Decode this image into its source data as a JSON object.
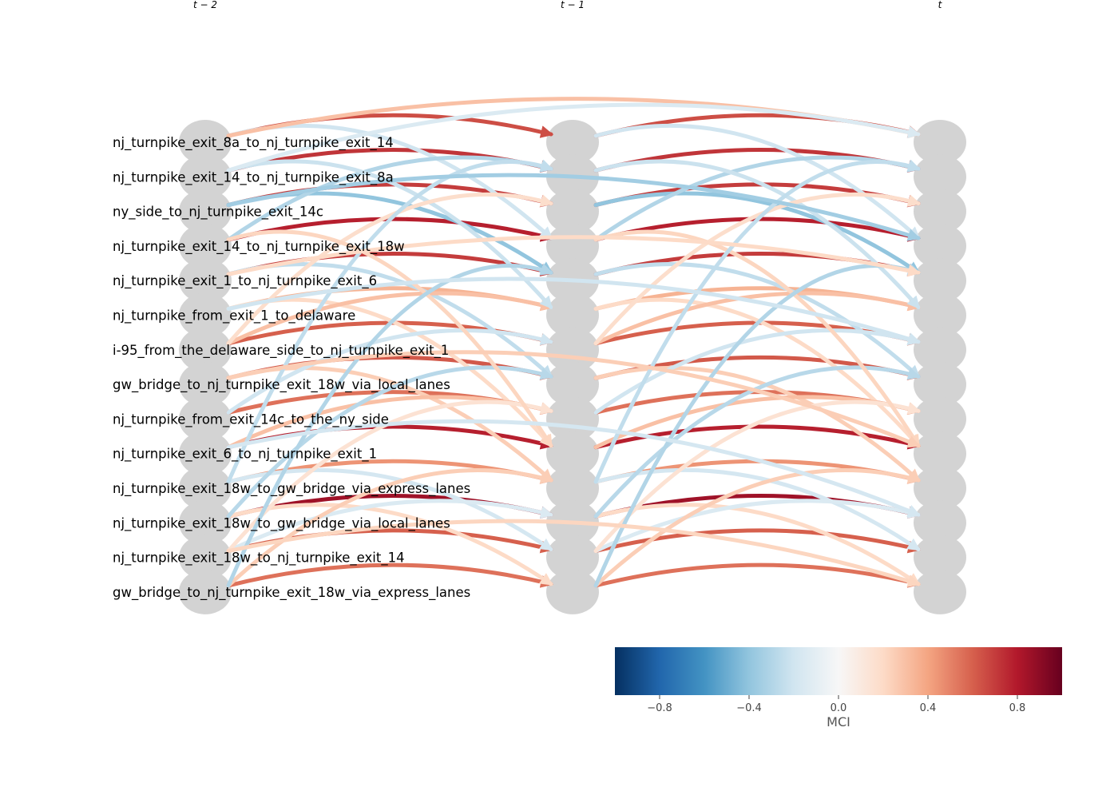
{
  "time_labels": [
    "t − 2",
    "t − 1",
    "t"
  ],
  "variables": [
    "nj_turnpike_exit_8a_to_nj_turnpike_exit_14",
    "nj_turnpike_exit_14_to_nj_turnpike_exit_8a",
    "ny_side_to_nj_turnpike_exit_14c",
    "nj_turnpike_exit_14_to_nj_turnpike_exit_18w",
    "nj_turnpike_exit_1_to_nj_turnpike_exit_6",
    "nj_turnpike_from_exit_1_to_delaware",
    "i-95_from_the_delaware_side_to_nj_turnpike_exit_1",
    "gw_bridge_to_nj_turnpike_exit_18w_via_local_lanes",
    "nj_turnpike_from_exit_14c_to_the_ny_side",
    "nj_turnpike_exit_6_to_nj_turnpike_exit_1",
    "nj_turnpike_exit_18w_to_gw_bridge_via_express_lanes",
    "nj_turnpike_exit_18w_to_gw_bridge_via_local_lanes",
    "nj_turnpike_exit_18w_to_nj_turnpike_exit_14",
    "gw_bridge_to_nj_turnpike_exit_18w_via_express_lanes"
  ],
  "colors": {
    "node": "#d3d3d3",
    "colormap": "RdBu_r",
    "colormap_stops": [
      "#053061",
      "#2166ac",
      "#4393c3",
      "#92c5de",
      "#d1e5f0",
      "#f7f7f7",
      "#fddbc7",
      "#f4a582",
      "#d6604d",
      "#b2182b",
      "#67001f"
    ]
  },
  "colorbar": {
    "title": "MCI",
    "min": -1.0,
    "max": 1.0,
    "ticks": [
      "−0.8",
      "−0.4",
      "0.0",
      "0.4",
      "0.8"
    ],
    "tick_values": [
      -0.8,
      -0.4,
      0.0,
      0.4,
      0.8
    ]
  },
  "links": [
    {
      "from": 0,
      "to": 0,
      "lag": 1,
      "mci": 0.65
    },
    {
      "from": 1,
      "to": 1,
      "lag": 1,
      "mci": 0.72
    },
    {
      "from": 2,
      "to": 2,
      "lag": 1,
      "mci": 0.7
    },
    {
      "from": 3,
      "to": 3,
      "lag": 1,
      "mci": 0.78
    },
    {
      "from": 4,
      "to": 4,
      "lag": 1,
      "mci": 0.7
    },
    {
      "from": 5,
      "to": 5,
      "lag": 1,
      "mci": 0.35
    },
    {
      "from": 6,
      "to": 6,
      "lag": 1,
      "mci": 0.6
    },
    {
      "from": 7,
      "to": 7,
      "lag": 1,
      "mci": 0.62
    },
    {
      "from": 8,
      "to": 8,
      "lag": 1,
      "mci": 0.55
    },
    {
      "from": 9,
      "to": 9,
      "lag": 1,
      "mci": 0.78
    },
    {
      "from": 10,
      "to": 10,
      "lag": 1,
      "mci": 0.45
    },
    {
      "from": 11,
      "to": 11,
      "lag": 1,
      "mci": 0.85
    },
    {
      "from": 12,
      "to": 12,
      "lag": 1,
      "mci": 0.6
    },
    {
      "from": 13,
      "to": 13,
      "lag": 1,
      "mci": 0.55
    },
    {
      "from": 0,
      "to": 3,
      "lag": 1,
      "mci": -0.2
    },
    {
      "from": 2,
      "to": 4,
      "lag": 1,
      "mci": -0.4
    },
    {
      "from": 3,
      "to": 1,
      "lag": 1,
      "mci": -0.3
    },
    {
      "from": 4,
      "to": 7,
      "lag": 1,
      "mci": -0.25
    },
    {
      "from": 5,
      "to": 9,
      "lag": 1,
      "mci": 0.2
    },
    {
      "from": 6,
      "to": 5,
      "lag": 1,
      "mci": 0.3
    },
    {
      "from": 7,
      "to": 10,
      "lag": 1,
      "mci": 0.25
    },
    {
      "from": 8,
      "to": 6,
      "lag": 1,
      "mci": -0.2
    },
    {
      "from": 9,
      "to": 8,
      "lag": 1,
      "mci": 0.3
    },
    {
      "from": 10,
      "to": 12,
      "lag": 1,
      "mci": -0.18
    },
    {
      "from": 11,
      "to": 13,
      "lag": 1,
      "mci": 0.2
    },
    {
      "from": 12,
      "to": 11,
      "lag": 1,
      "mci": -0.15
    },
    {
      "from": 13,
      "to": 10,
      "lag": 1,
      "mci": 0.25
    },
    {
      "from": 1,
      "to": 5,
      "lag": 1,
      "mci": -0.22
    },
    {
      "from": 6,
      "to": 2,
      "lag": 1,
      "mci": 0.18
    },
    {
      "from": 11,
      "to": 7,
      "lag": 1,
      "mci": -0.28
    },
    {
      "from": 12,
      "to": 8,
      "lag": 1,
      "mci": 0.15
    },
    {
      "from": 3,
      "to": 9,
      "lag": 1,
      "mci": 0.22
    },
    {
      "from": 10,
      "to": 1,
      "lag": 1,
      "mci": -0.25
    },
    {
      "from": 13,
      "to": 4,
      "lag": 1,
      "mci": -0.3
    },
    {
      "from": 0,
      "to": 0,
      "lag": 2,
      "mci": 0.3
    },
    {
      "from": 1,
      "to": 0,
      "lag": 2,
      "mci": -0.15
    },
    {
      "from": 2,
      "to": 3,
      "lag": 2,
      "mci": -0.35
    },
    {
      "from": 4,
      "to": 4,
      "lag": 2,
      "mci": 0.2
    },
    {
      "from": 5,
      "to": 6,
      "lag": 2,
      "mci": -0.2
    },
    {
      "from": 7,
      "to": 9,
      "lag": 2,
      "mci": 0.25
    },
    {
      "from": 9,
      "to": 11,
      "lag": 2,
      "mci": -0.18
    },
    {
      "from": 12,
      "to": 13,
      "lag": 2,
      "mci": 0.22
    }
  ]
}
